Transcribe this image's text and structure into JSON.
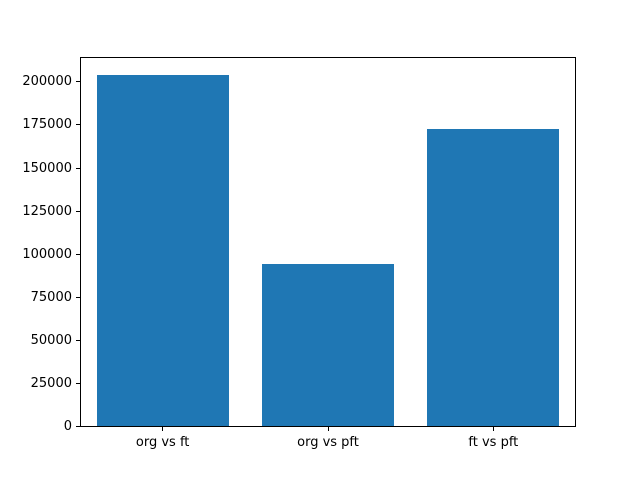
{
  "figure": {
    "background_color": "#ffffff",
    "axes_edge_color": "#000000",
    "text_color": "#000000"
  },
  "chart_data": {
    "type": "bar",
    "title": "",
    "xlabel": "",
    "ylabel": "",
    "categories": [
      "org vs ft",
      "org vs pft",
      "ft vs pft"
    ],
    "values": [
      204500,
      94600,
      172800
    ],
    "bar_color": "#1f77b4",
    "bar_width_fraction": 0.8,
    "ylim": [
      0,
      214725
    ],
    "yticks": [
      0,
      25000,
      50000,
      75000,
      100000,
      125000,
      150000,
      175000,
      200000
    ],
    "grid": false,
    "legend_position": "none"
  }
}
